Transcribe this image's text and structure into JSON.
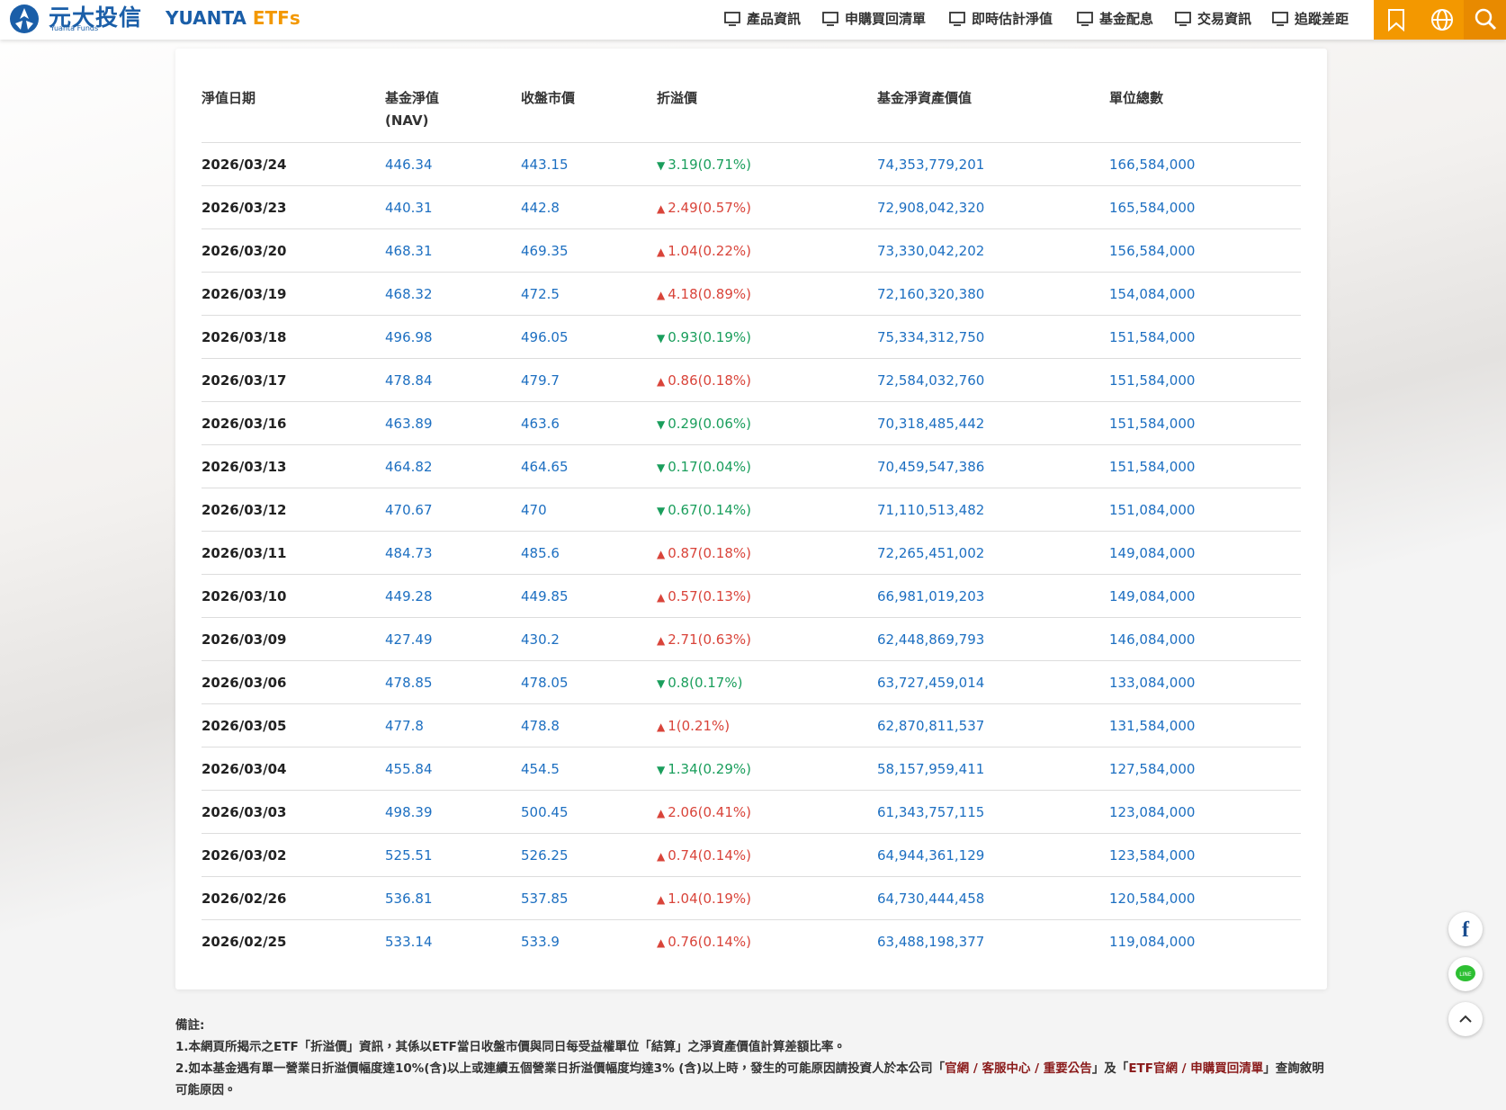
{
  "header": {
    "logo_cn": "元大投信",
    "logo_en": "Yuanta Funds",
    "brand_main": "YUANTA ",
    "brand_accent": "ETFs",
    "nav": [
      "產品資訊",
      "申購買回清單",
      "即時估計淨值",
      "基金配息",
      "交易資訊",
      "追蹤差距"
    ]
  },
  "table": {
    "headers": [
      "淨值日期",
      "基金淨值",
      "收盤市價",
      "折溢價",
      "基金淨資產價值",
      "單位總數"
    ],
    "header_sub": "(NAV)",
    "rows": [
      {
        "date": "2026/03/24",
        "nav": "446.34",
        "price": "443.15",
        "direction": "down",
        "premium": "3.19(0.71%)",
        "assets": "74,353,779,201",
        "units": "166,584,000"
      },
      {
        "date": "2026/03/23",
        "nav": "440.31",
        "price": "442.8",
        "direction": "up",
        "premium": "2.49(0.57%)",
        "assets": "72,908,042,320",
        "units": "165,584,000"
      },
      {
        "date": "2026/03/20",
        "nav": "468.31",
        "price": "469.35",
        "direction": "up",
        "premium": "1.04(0.22%)",
        "assets": "73,330,042,202",
        "units": "156,584,000"
      },
      {
        "date": "2026/03/19",
        "nav": "468.32",
        "price": "472.5",
        "direction": "up",
        "premium": "4.18(0.89%)",
        "assets": "72,160,320,380",
        "units": "154,084,000"
      },
      {
        "date": "2026/03/18",
        "nav": "496.98",
        "price": "496.05",
        "direction": "down",
        "premium": "0.93(0.19%)",
        "assets": "75,334,312,750",
        "units": "151,584,000"
      },
      {
        "date": "2026/03/17",
        "nav": "478.84",
        "price": "479.7",
        "direction": "up",
        "premium": "0.86(0.18%)",
        "assets": "72,584,032,760",
        "units": "151,584,000"
      },
      {
        "date": "2026/03/16",
        "nav": "463.89",
        "price": "463.6",
        "direction": "down",
        "premium": "0.29(0.06%)",
        "assets": "70,318,485,442",
        "units": "151,584,000"
      },
      {
        "date": "2026/03/13",
        "nav": "464.82",
        "price": "464.65",
        "direction": "down",
        "premium": "0.17(0.04%)",
        "assets": "70,459,547,386",
        "units": "151,584,000"
      },
      {
        "date": "2026/03/12",
        "nav": "470.67",
        "price": "470",
        "direction": "down",
        "premium": "0.67(0.14%)",
        "assets": "71,110,513,482",
        "units": "151,084,000"
      },
      {
        "date": "2026/03/11",
        "nav": "484.73",
        "price": "485.6",
        "direction": "up",
        "premium": "0.87(0.18%)",
        "assets": "72,265,451,002",
        "units": "149,084,000"
      },
      {
        "date": "2026/03/10",
        "nav": "449.28",
        "price": "449.85",
        "direction": "up",
        "premium": "0.57(0.13%)",
        "assets": "66,981,019,203",
        "units": "149,084,000"
      },
      {
        "date": "2026/03/09",
        "nav": "427.49",
        "price": "430.2",
        "direction": "up",
        "premium": "2.71(0.63%)",
        "assets": "62,448,869,793",
        "units": "146,084,000"
      },
      {
        "date": "2026/03/06",
        "nav": "478.85",
        "price": "478.05",
        "direction": "down",
        "premium": "0.8(0.17%)",
        "assets": "63,727,459,014",
        "units": "133,084,000"
      },
      {
        "date": "2026/03/05",
        "nav": "477.8",
        "price": "478.8",
        "direction": "up",
        "premium": "1(0.21%)",
        "assets": "62,870,811,537",
        "units": "131,584,000"
      },
      {
        "date": "2026/03/04",
        "nav": "455.84",
        "price": "454.5",
        "direction": "down",
        "premium": "1.34(0.29%)",
        "assets": "58,157,959,411",
        "units": "127,584,000"
      },
      {
        "date": "2026/03/03",
        "nav": "498.39",
        "price": "500.45",
        "direction": "up",
        "premium": "2.06(0.41%)",
        "assets": "61,343,757,115",
        "units": "123,084,000"
      },
      {
        "date": "2026/03/02",
        "nav": "525.51",
        "price": "526.25",
        "direction": "up",
        "premium": "0.74(0.14%)",
        "assets": "64,944,361,129",
        "units": "123,584,000"
      },
      {
        "date": "2026/02/26",
        "nav": "536.81",
        "price": "537.85",
        "direction": "up",
        "premium": "1.04(0.19%)",
        "assets": "64,730,444,458",
        "units": "120,584,000"
      },
      {
        "date": "2026/02/25",
        "nav": "533.14",
        "price": "533.9",
        "direction": "up",
        "premium": "0.76(0.14%)",
        "assets": "63,488,198,377",
        "units": "119,084,000"
      }
    ]
  },
  "notes": {
    "title": "備註:",
    "line1": "1.本網頁所揭示之ETF「折溢價」資訊，其係以ETF當日收盤市價與同日每受益權單位「結算」之淨資產價值計算差額比率。",
    "line2": [
      {
        "text": "2.如本基金遇有單一營業日折溢價幅度達10%(含)以上或連續五個營業日折溢價幅度均達3% (含)以上時，發生的可能原因請投資人於本公司「",
        "link": false
      },
      {
        "text": "官網 / 客服中心 / 重要公告",
        "link": true
      },
      {
        "text": "」及「",
        "link": false
      },
      {
        "text": "ETF官網 / 申購買回清單",
        "link": true
      },
      {
        "text": "」查詢敘明可能原因。",
        "link": false
      }
    ]
  }
}
